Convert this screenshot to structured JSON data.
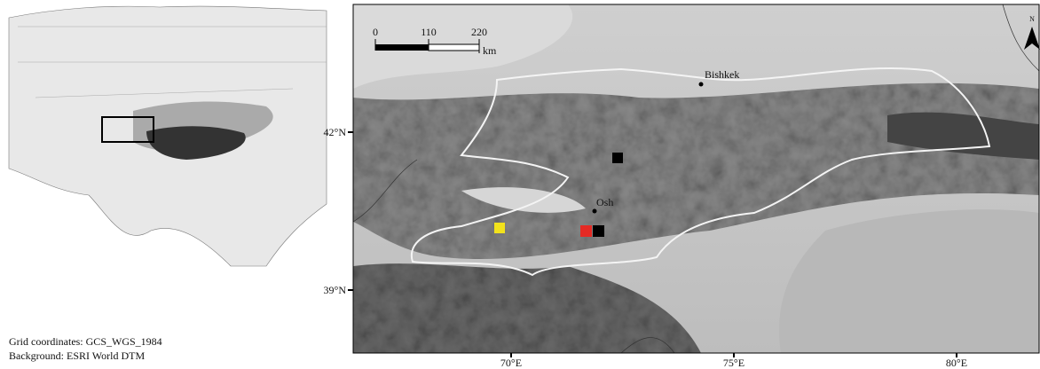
{
  "scale_bar": {
    "ticks": [
      0,
      110,
      220
    ],
    "unit": "km"
  },
  "north_arrow": "N",
  "cities": [
    {
      "name": "Bishkek"
    },
    {
      "name": "Osh"
    }
  ],
  "latitude_labels": [
    "42°N",
    "39°N"
  ],
  "longitude_labels": [
    "70°E",
    "75°E",
    "80°E"
  ],
  "notes": [
    "Grid coordinates: GCS_WGS_1984",
    "Background: ESRI World DTM"
  ]
}
